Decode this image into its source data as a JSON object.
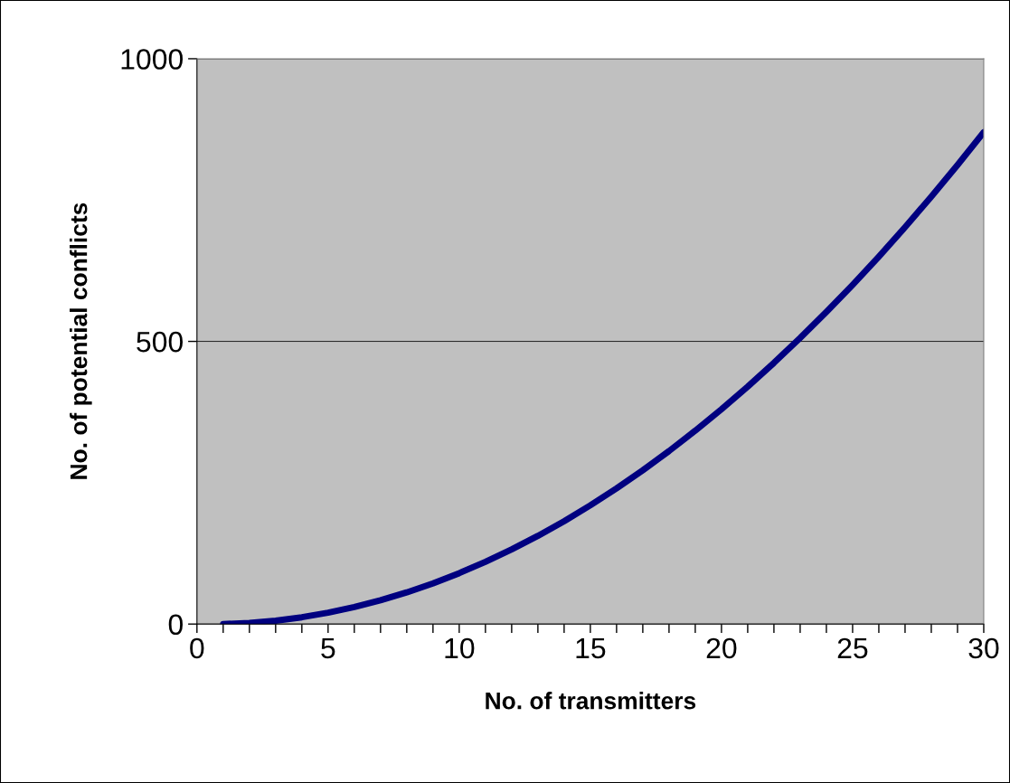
{
  "chart_data": {
    "type": "line",
    "xlabel": "No. of transmitters",
    "ylabel": "No. of potential conflicts",
    "x": [
      1,
      2,
      3,
      4,
      5,
      6,
      7,
      8,
      9,
      10,
      11,
      12,
      13,
      14,
      15,
      16,
      17,
      18,
      19,
      20,
      21,
      22,
      23,
      24,
      25,
      26,
      27,
      28,
      29,
      30
    ],
    "series": [
      {
        "color": "#000080",
        "values": [
          0,
          2,
          6,
          12,
          20,
          30,
          42,
          56,
          72,
          90,
          110,
          132,
          156,
          182,
          210,
          240,
          272,
          306,
          342,
          380,
          420,
          462,
          506,
          552,
          600,
          650,
          702,
          756,
          812,
          870
        ]
      }
    ],
    "xlim": [
      0,
      30
    ],
    "xticks": [
      0,
      {
        "value": 1,
        "label": null
      },
      {
        "value": 2,
        "label": null
      },
      {
        "value": 3,
        "label": null
      },
      {
        "value": 4,
        "label": null
      },
      5,
      {
        "value": 6,
        "label": null
      },
      {
        "value": 7,
        "label": null
      },
      {
        "value": 8,
        "label": null
      },
      {
        "value": 9,
        "label": null
      },
      10,
      {
        "value": 11,
        "label": null
      },
      {
        "value": 12,
        "label": null
      },
      {
        "value": 13,
        "label": null
      },
      {
        "value": 14,
        "label": null
      },
      15,
      {
        "value": 16,
        "label": null
      },
      {
        "value": 17,
        "label": null
      },
      {
        "value": 18,
        "label": null
      },
      {
        "value": 19,
        "label": null
      },
      20,
      {
        "value": 21,
        "label": null
      },
      {
        "value": 22,
        "label": null
      },
      {
        "value": 23,
        "label": null
      },
      {
        "value": 24,
        "label": null
      },
      25,
      {
        "value": 26,
        "label": null
      },
      {
        "value": 27,
        "label": null
      },
      {
        "value": 28,
        "label": null
      },
      {
        "value": 29,
        "label": null
      },
      30
    ],
    "ylim": [
      0,
      1000
    ],
    "yticks": [
      0,
      500,
      1000
    ],
    "grid": "y",
    "marker": "none",
    "line_style": "solid"
  }
}
